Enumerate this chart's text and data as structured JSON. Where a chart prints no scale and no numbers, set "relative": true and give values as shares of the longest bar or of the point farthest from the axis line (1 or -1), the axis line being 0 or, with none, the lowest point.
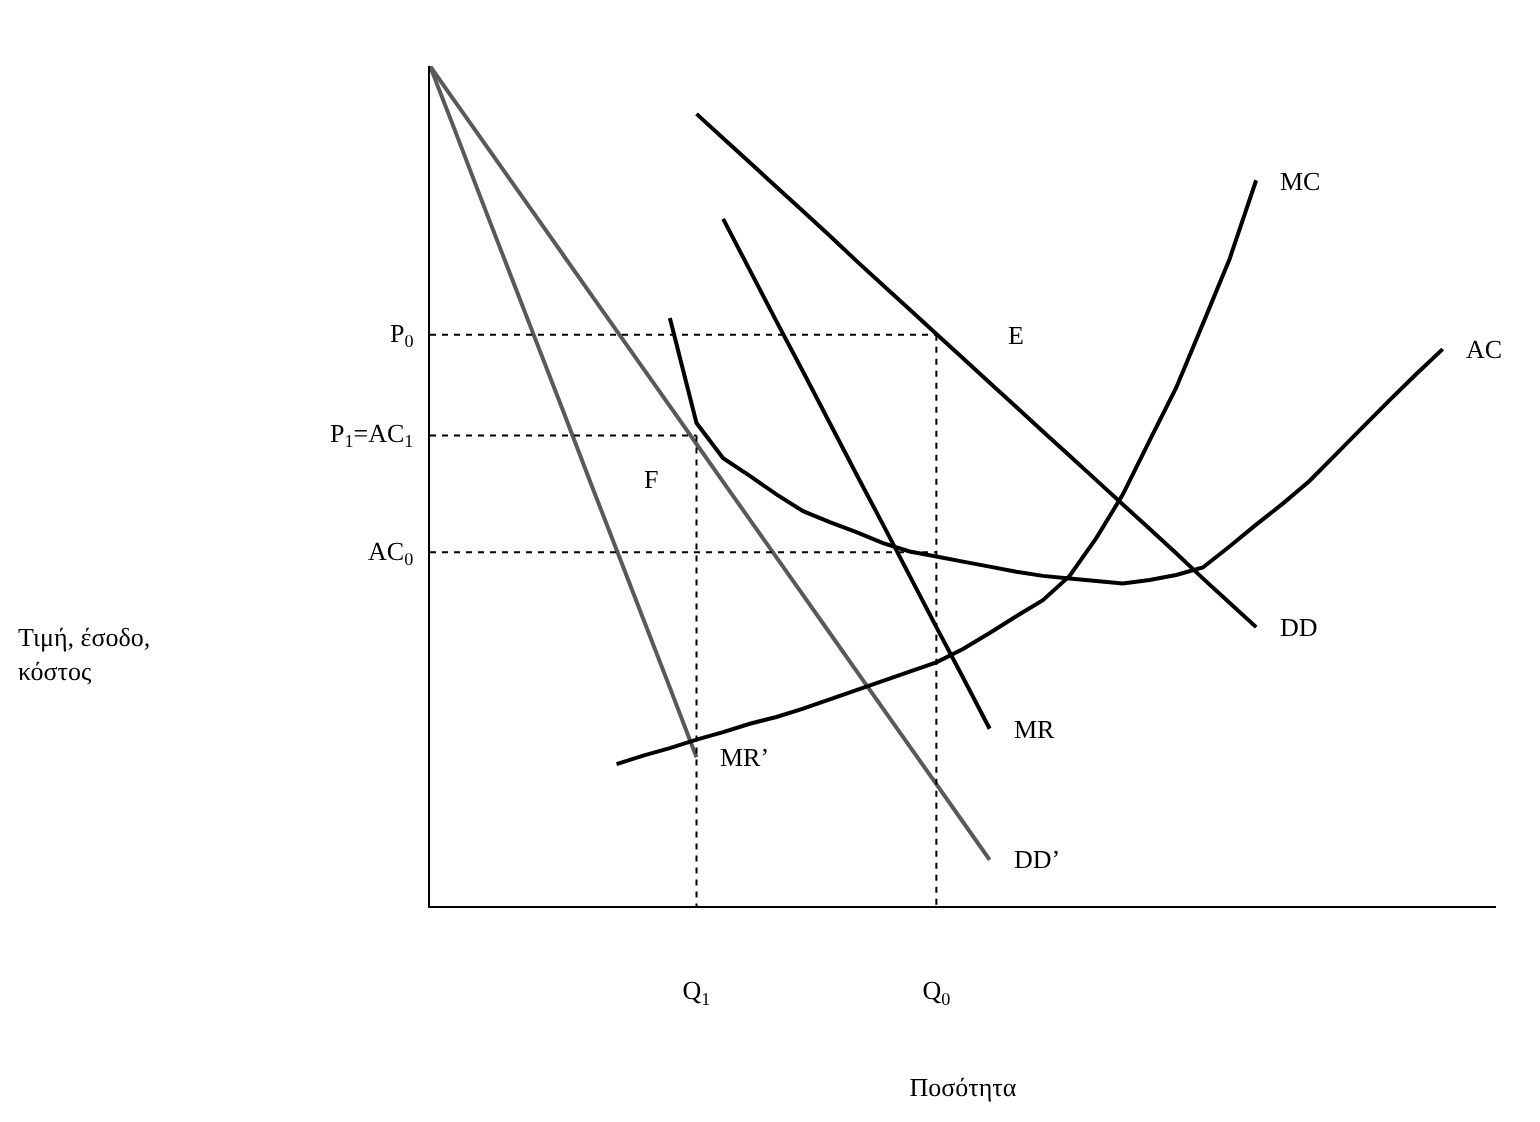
{
  "chart_data": {
    "type": "line",
    "relative": true,
    "xlabel": "Ποσότητα",
    "legend": false,
    "categories": [
      null,
      null,
      null,
      null,
      null,
      null,
      null,
      null,
      null,
      null,
      "Q$_{1}$",
      null,
      null,
      null,
      null,
      null,
      null,
      null,
      null,
      "Q$_{0}$",
      null,
      null,
      null,
      null,
      null,
      null,
      null,
      null,
      null,
      null,
      null,
      null,
      null,
      null,
      null,
      null,
      null,
      null,
      null,
      null,
      null
    ],
    "series": [
      {
        "name": "DD’",
        "color": "#595959",
        "values": [
          1,
          0.955,
          0.91,
          0.865,
          0.82,
          0.775,
          0.73,
          0.685,
          0.64,
          0.595,
          0.55,
          0.505,
          0.46,
          0.415,
          0.37,
          0.325,
          0.28,
          0.235,
          0.19,
          0.145,
          0.1,
          0.055,
          null,
          null,
          null,
          null,
          null,
          null,
          null,
          null,
          null,
          null,
          null,
          null,
          null,
          null,
          null,
          null,
          null,
          null,
          null
        ]
      },
      {
        "name": "MR’",
        "color": "#595959",
        "values": [
          1,
          0.918,
          0.835,
          0.753,
          0.671,
          0.589,
          0.506,
          0.424,
          0.342,
          0.26,
          0.177,
          null,
          null,
          null,
          null,
          null,
          null,
          null,
          null,
          null,
          null,
          null,
          null,
          null,
          null,
          null,
          null,
          null,
          null,
          null,
          null,
          null,
          null,
          null,
          null,
          null,
          null,
          null,
          null,
          null,
          null
        ]
      },
      {
        "name": "DD",
        "color": "#000000",
        "values": [
          null,
          null,
          null,
          null,
          null,
          null,
          null,
          null,
          null,
          null,
          0.943,
          0.914,
          0.885,
          0.856,
          0.827,
          0.798,
          0.768,
          0.739,
          0.71,
          0.681,
          0.652,
          0.623,
          0.594,
          0.565,
          0.536,
          0.507,
          0.478,
          0.449,
          0.42,
          0.39,
          0.361,
          0.332,
          null,
          null,
          null,
          null,
          null,
          null,
          null,
          null,
          null
        ]
      },
      {
        "name": "MR",
        "color": "#000000",
        "values": [
          null,
          null,
          null,
          null,
          null,
          null,
          null,
          null,
          null,
          null,
          null,
          0.818,
          0.757,
          0.696,
          0.636,
          0.575,
          0.514,
          0.454,
          0.393,
          0.332,
          0.272,
          0.211,
          null,
          null,
          null,
          null,
          null,
          null,
          null,
          null,
          null,
          null,
          null,
          null,
          null,
          null,
          null,
          null,
          null,
          null,
          null
        ]
      },
      {
        "name": "MC",
        "color": "#000000",
        "values": [
          null,
          null,
          null,
          null,
          null,
          null,
          null,
          0.169,
          0.179,
          0.188,
          0.198,
          0.207,
          0.217,
          0.225,
          0.235,
          0.246,
          0.257,
          0.268,
          0.279,
          0.29,
          0.306,
          0.325,
          0.345,
          0.364,
          0.393,
          0.438,
          0.49,
          0.554,
          0.617,
          0.693,
          0.77,
          0.864,
          null,
          null,
          null,
          null,
          null,
          null,
          null,
          null,
          null
        ]
      },
      {
        "name": "AC",
        "color": "#000000",
        "values": [
          null,
          null,
          null,
          null,
          null,
          null,
          null,
          null,
          null,
          0.7,
          0.575,
          0.533,
          0.512,
          0.49,
          0.47,
          0.457,
          0.445,
          0.432,
          0.422,
          0.416,
          0.41,
          0.404,
          0.398,
          0.393,
          0.39,
          0.387,
          0.384,
          0.388,
          0.394,
          0.403,
          0.428,
          0.454,
          0.479,
          0.506,
          0.538,
          0.57,
          0.602,
          0.633,
          0.663,
          null,
          null
        ]
      },
      {
        "name": "P$_{0}$",
        "color": "#000000",
        "line_style": "dotted",
        "values": [
          0.68,
          0.68,
          0.68,
          0.68,
          0.68,
          0.68,
          0.68,
          0.68,
          0.68,
          0.68,
          0.68,
          0.68,
          0.68,
          0.68,
          0.68,
          0.68,
          0.68,
          0.68,
          0.68,
          0.68,
          null,
          null,
          null,
          null,
          null,
          null,
          null,
          null,
          null,
          null,
          null,
          null,
          null,
          null,
          null,
          null,
          null,
          null,
          null,
          null,
          null
        ]
      },
      {
        "name": "P$_{1}$=AC$_{1}$",
        "color": "#000000",
        "line_style": "dotted",
        "values": [
          0.56,
          0.56,
          0.56,
          0.56,
          0.56,
          0.56,
          0.56,
          0.56,
          0.56,
          0.56,
          0.56,
          null,
          null,
          null,
          null,
          null,
          null,
          null,
          null,
          null,
          null,
          null,
          null,
          null,
          null,
          null,
          null,
          null,
          null,
          null,
          null,
          null,
          null,
          null,
          null,
          null,
          null,
          null,
          null,
          null,
          null
        ]
      },
      {
        "name": "AC$_{0}$",
        "color": "#000000",
        "line_style": "dotted",
        "values": [
          0.421,
          0.421,
          0.421,
          0.421,
          0.421,
          0.421,
          0.421,
          0.421,
          0.421,
          0.421,
          0.421,
          0.421,
          0.421,
          0.421,
          0.421,
          0.421,
          0.421,
          0.421,
          0.421,
          0.421,
          null,
          null,
          null,
          null,
          null,
          null,
          null,
          null,
          null,
          null,
          null,
          null,
          null,
          null,
          null,
          null,
          null,
          null,
          null,
          null,
          null
        ]
      },
      {
        "color": "#000000",
        "line_style": "dotted",
        "x": [
          "Q$_{0}$",
          "Q$_{0}$"
        ],
        "values": [
          0.68,
          0
        ]
      },
      {
        "color": "#000000",
        "line_style": "dotted",
        "x": [
          "Q$_{1}$",
          "Q$_{1}$"
        ],
        "values": [
          0.56,
          0
        ]
      }
    ],
    "annotations": [
      "Τιμή, έσοδο, κόστος",
      {
        "text": "E",
        "x": "Q$_{0}$",
        "y": 0.68
      },
      {
        "text": "F",
        "x": "Q$_{1}$",
        "y": 0.56
      }
    ]
  }
}
